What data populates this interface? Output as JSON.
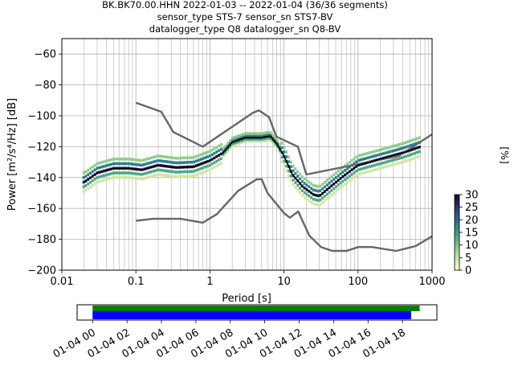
{
  "title": {
    "line1": "BK.BK70.00.HHN   2022-01-03 -- 2022-01-04  (36/36 segments)",
    "line2": "sensor_type STS-7 sensor_sn STS7-BV",
    "line3": "datalogger_type Q8 datalogger_sn Q8-BV"
  },
  "chart_data": [
    {
      "type": "heatmap",
      "subtype": "probabilistic-power-spectral-density",
      "xlabel": "Period [s]",
      "ylabel": "Power [m²/s⁴/Hz] [dB]",
      "xscale": "log",
      "xlim": [
        0.01,
        1000
      ],
      "ylim": [
        -200,
        -50
      ],
      "x_ticks": [
        0.01,
        0.1,
        1,
        10,
        100,
        1000
      ],
      "x_tick_labels": [
        "0.01",
        "0.1",
        "1",
        "10",
        "100",
        "1000"
      ],
      "y_ticks": [
        -200,
        -180,
        -160,
        -140,
        -120,
        -100,
        -80,
        -60
      ],
      "y_tick_labels": [
        "−200",
        "−180",
        "−160",
        "−140",
        "−120",
        "−100",
        "−80",
        "−60"
      ],
      "grid": true,
      "series": [
        {
          "kind": "noise-model-upper",
          "color": "#666666",
          "x": [
            0.1,
            0.22,
            0.32,
            0.8,
            3.8,
            4.6,
            6.3,
            7.9,
            15.4,
            20,
            354.8,
            1000
          ],
          "y": [
            -91.5,
            -97.4,
            -110.5,
            -120.0,
            -98.0,
            -96.5,
            -101.0,
            -113.5,
            -120.0,
            -138.0,
            -126.0,
            -112.0
          ]
        },
        {
          "kind": "noise-model-lower",
          "color": "#666666",
          "x": [
            0.1,
            0.17,
            0.4,
            0.8,
            1.24,
            2.4,
            4.3,
            5.0,
            6.0,
            10.0,
            12.0,
            15.6,
            21.9,
            31.6,
            45.0,
            70.0,
            101.0,
            154.0,
            328.0,
            600.0,
            1000.0
          ],
          "y": [
            -168.0,
            -166.7,
            -166.7,
            -169.2,
            -163.7,
            -148.6,
            -141.1,
            -141.1,
            -150.0,
            -163.0,
            -166.0,
            -162.0,
            -177.5,
            -185.0,
            -187.5,
            -187.5,
            -185.0,
            -185.0,
            -187.5,
            -184.4,
            -178.0
          ]
        },
        {
          "kind": "mean",
          "color": "#000000",
          "x": [
            0.02,
            0.03,
            0.05,
            0.08,
            0.12,
            0.2,
            0.35,
            0.6,
            1.0,
            1.5,
            2.0,
            3.0,
            5.0,
            6.5,
            8.0,
            10.0,
            13.0,
            18.0,
            25.0,
            30.0,
            40.0,
            60.0,
            100.0,
            200.0,
            400.0,
            700.0
          ],
          "y": [
            -143.0,
            -137.0,
            -134.0,
            -134.0,
            -135.0,
            -132.0,
            -133.5,
            -133.0,
            -129.0,
            -124.0,
            -117.0,
            -114.0,
            -114.0,
            -113.0,
            -118.0,
            -126.0,
            -138.0,
            -146.0,
            -151.0,
            -152.0,
            -147.0,
            -140.0,
            -132.0,
            -128.0,
            -124.0,
            -120.0
          ]
        }
      ],
      "colorbar": {
        "label": "[%]",
        "range": [
          0,
          30
        ],
        "ticks": [
          "0",
          "5",
          "10",
          "15",
          "20",
          "25",
          "30"
        ],
        "colormap": [
          "#fffed0",
          "#cfe7a3",
          "#8ecc86",
          "#47a883",
          "#2a7e8c",
          "#2d4f8a",
          "#2b1f55",
          "#0f0626"
        ]
      }
    },
    {
      "type": "bar",
      "subtype": "data-coverage-timeline",
      "x_tick_labels": [
        "01-04 00",
        "01-04 02",
        "01-04 04",
        "01-04 06",
        "01-04 08",
        "01-04 10",
        "01-04 12",
        "01-04 14",
        "01-04 16",
        "01-04 18"
      ],
      "x_ticks_hours": [
        0,
        2,
        4,
        6,
        8,
        10,
        12,
        14,
        16,
        18
      ],
      "xlim_hours": [
        -0.9,
        20.0
      ],
      "series": [
        {
          "name": "",
          "color": "#008000",
          "start_hours": 0.0,
          "end_hours": 19.0
        },
        {
          "name": "",
          "color": "#0000ff",
          "start_hours": 0.0,
          "end_hours": 18.5
        }
      ]
    }
  ]
}
